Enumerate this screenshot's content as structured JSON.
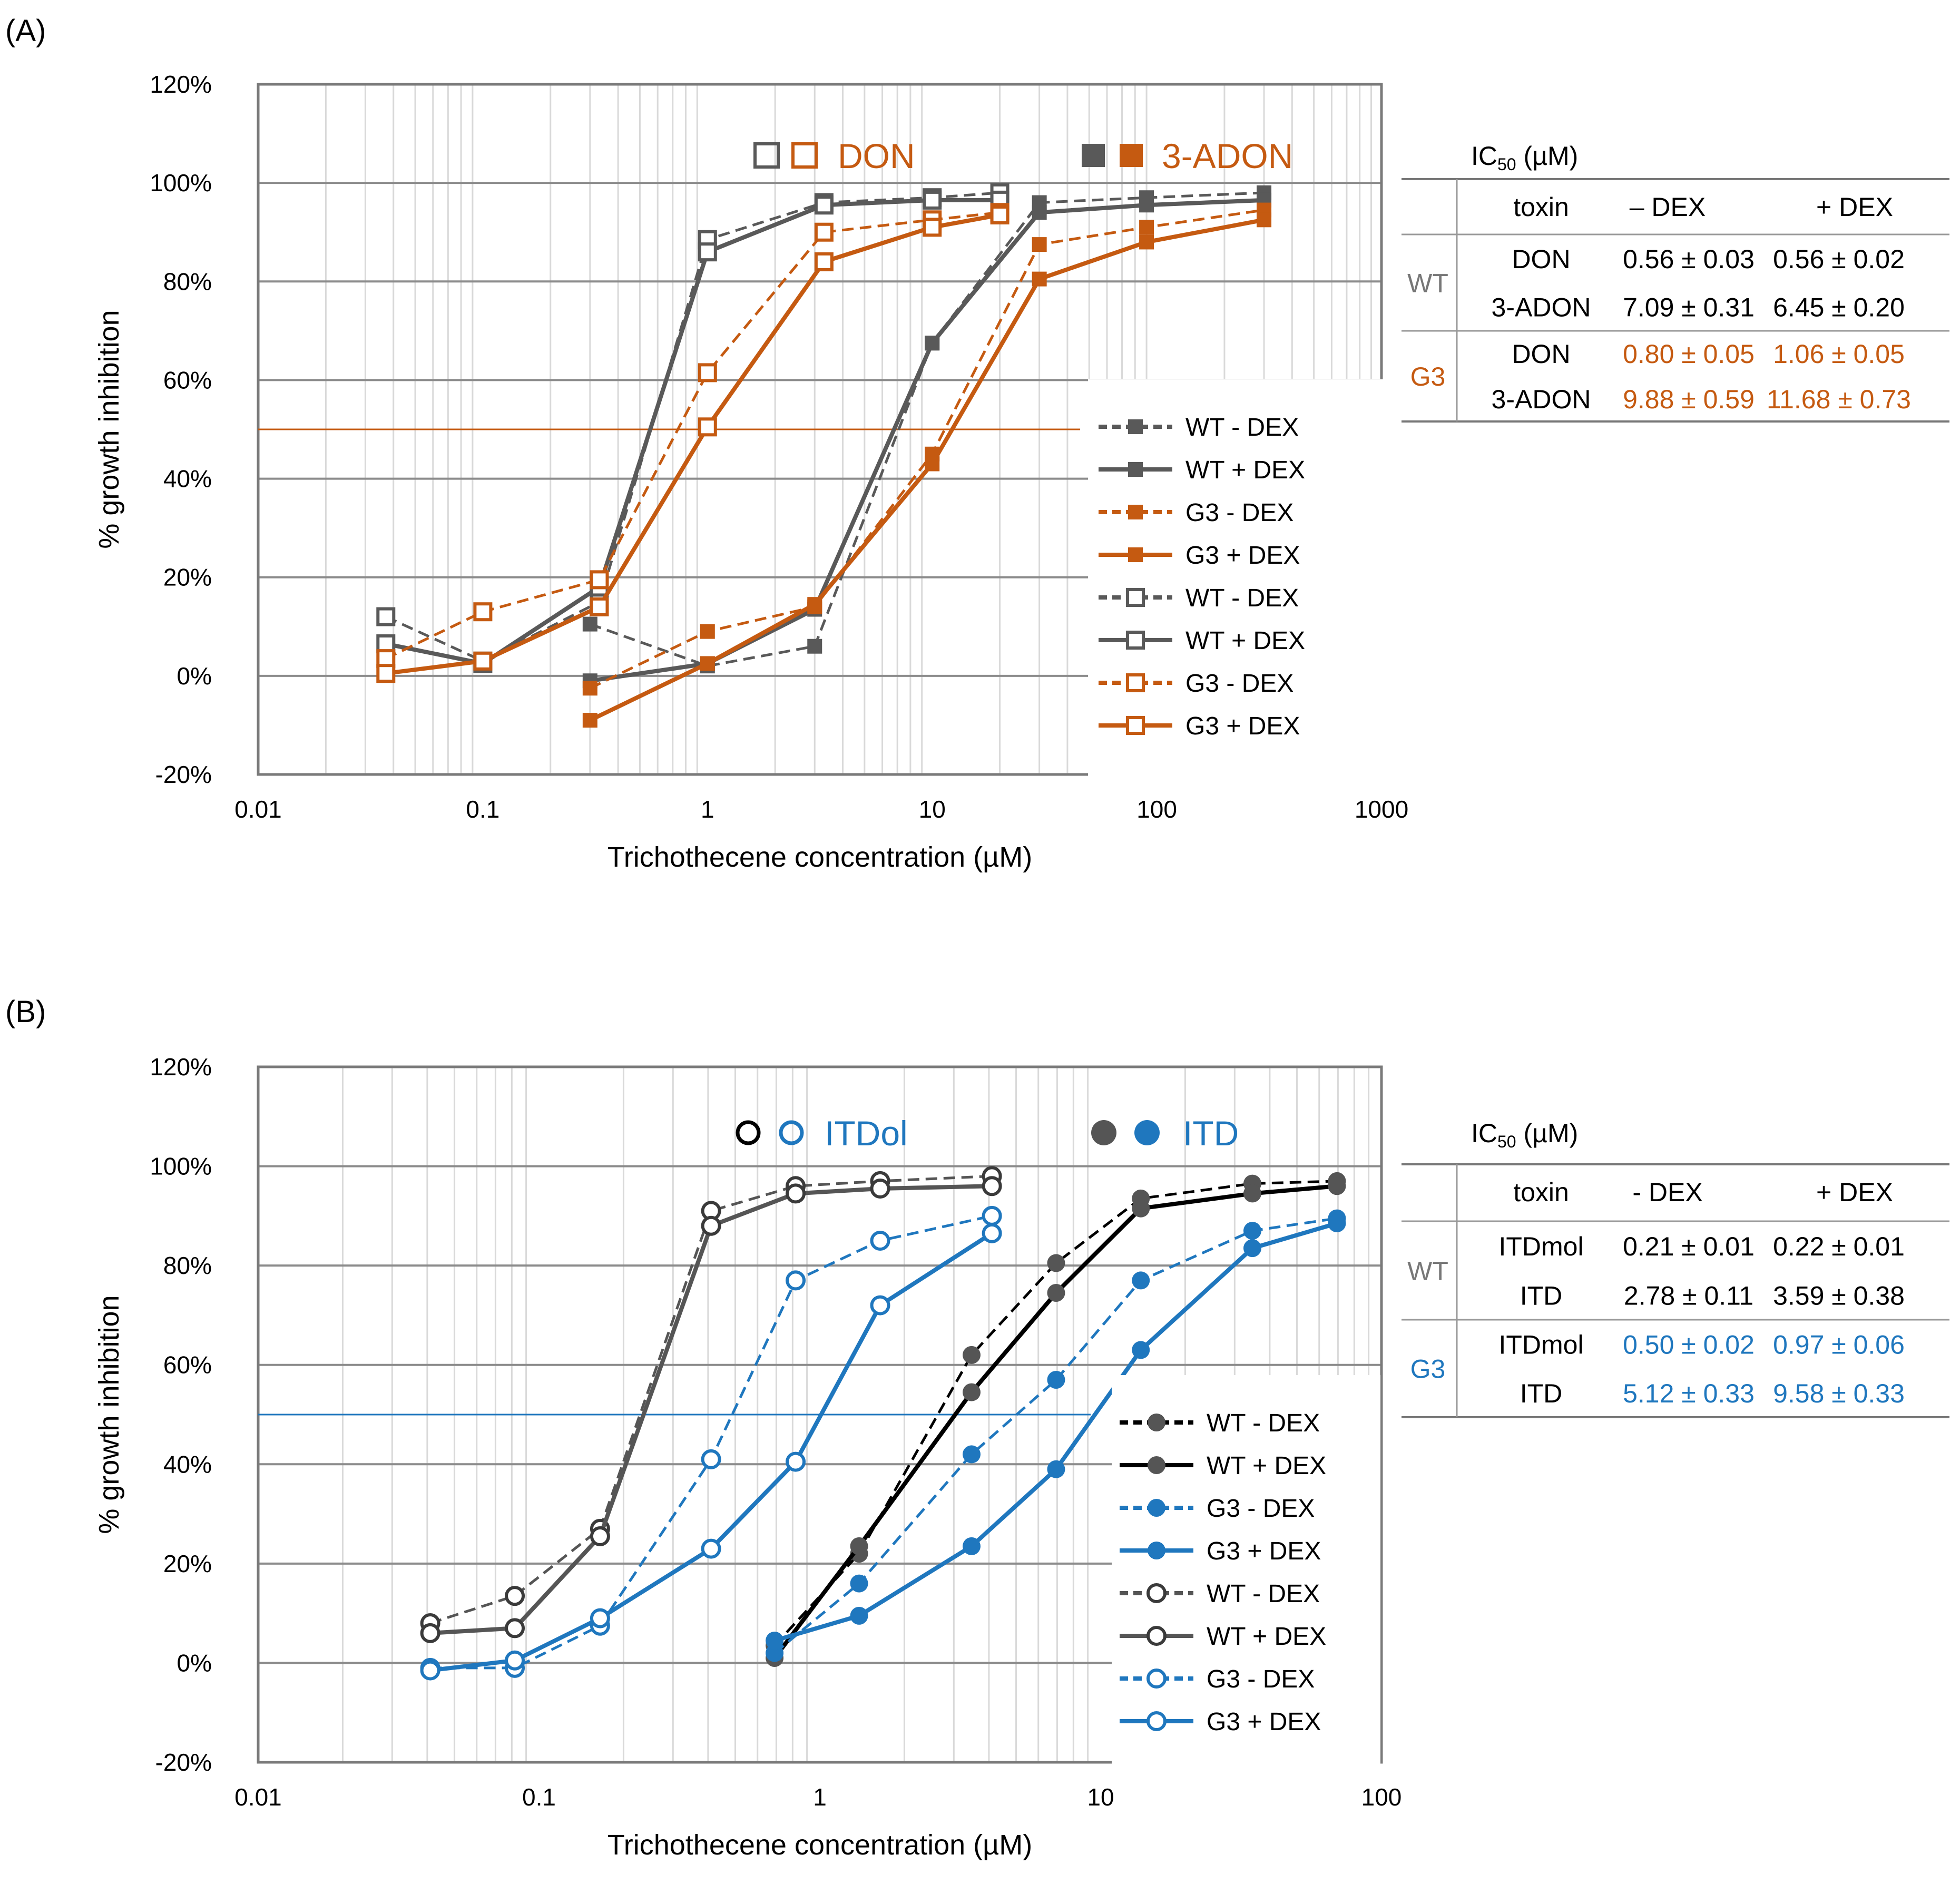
{
  "colors": {
    "wt_a": "#595959",
    "wt_b": "#000000",
    "g3_a": "#C55A11",
    "g3_b": "#1F77BE",
    "grid_major": "#8c8c8c",
    "grid_minor": "#d9d9d9"
  },
  "panels": [
    {
      "label": "(A)",
      "xlabel": "Trichothecene concentration (µM)",
      "ylabel": "% growth inhibition",
      "legend_titles": [
        "DON",
        "3-ADON"
      ],
      "legend_labels": [
        "WT - DEX",
        "WT + DEX",
        "G3 - DEX",
        "G3 + DEX",
        "WT - DEX",
        "WT + DEX",
        "G3 - DEX",
        "G3 + DEX"
      ],
      "table": {
        "title": "IC50 (µM)",
        "headers": [
          "toxin",
          "– DEX",
          "+ DEX"
        ],
        "groups": [
          {
            "strain": "WT",
            "rows": [
              [
                "DON",
                "0.56 ± 0.03",
                "0.56 ± 0.02"
              ],
              [
                "3-ADON",
                "7.09 ± 0.31",
                "6.45 ± 0.20"
              ]
            ]
          },
          {
            "strain": "G3",
            "rows": [
              [
                "DON",
                "0.80 ± 0.05",
                "1.06 ± 0.05"
              ],
              [
                "3-ADON",
                "9.88 ± 0.59",
                "11.68 ± 0.73"
              ]
            ]
          }
        ]
      }
    },
    {
      "label": "(B)",
      "xlabel": "Trichothecene concentration (µM)",
      "ylabel": "% growth inhibition",
      "legend_titles": [
        "ITDol",
        "ITD"
      ],
      "legend_labels": [
        "WT - DEX",
        "WT + DEX",
        "G3 - DEX",
        "G3 + DEX",
        "WT - DEX",
        "WT + DEX",
        "G3 - DEX",
        "G3 + DEX"
      ],
      "table": {
        "title": "IC50 (µM)",
        "headers": [
          "toxin",
          "- DEX",
          "+ DEX"
        ],
        "groups": [
          {
            "strain": "WT",
            "rows": [
              [
                "ITDmol",
                "0.21 ± 0.01",
                "0.22 ± 0.01"
              ],
              [
                "ITD",
                "2.78 ± 0.11",
                "3.59 ± 0.38"
              ]
            ]
          },
          {
            "strain": "G3",
            "rows": [
              [
                "ITDmol",
                "0.50 ± 0.02",
                "0.97 ± 0.06"
              ],
              [
                "ITD",
                "5.12 ± 0.33",
                "9.58 ± 0.33"
              ]
            ]
          }
        ]
      }
    }
  ],
  "chart_data": [
    {
      "type": "line",
      "xscale": "log",
      "xlim": [
        0.01,
        1000
      ],
      "ylim": [
        -20,
        120
      ],
      "x_ticks": [
        "0.01",
        "0.1",
        "1",
        "10",
        "100",
        "1000"
      ],
      "y_ticks": [
        "-20%",
        "0%",
        "20%",
        "40%",
        "60%",
        "80%",
        "100%",
        "120%"
      ],
      "reference_line_y": 50,
      "grid": true,
      "legend_position": "center-right",
      "series": [
        {
          "name": "WT - DEX",
          "toxin": "3-ADON",
          "strain": "WT",
          "dex": "-",
          "marker": "filled-square",
          "dashed": true,
          "x": [
            0.3,
            1,
            3,
            10,
            30,
            90,
            300
          ],
          "y": [
            10.5,
            2,
            6,
            67.5,
            96,
            97,
            98
          ]
        },
        {
          "name": "WT + DEX",
          "toxin": "3-ADON",
          "strain": "WT",
          "dex": "+",
          "marker": "filled-square",
          "dashed": false,
          "x": [
            0.3,
            1,
            3,
            10,
            30,
            90,
            300
          ],
          "y": [
            -1,
            2.5,
            13.5,
            67.5,
            94,
            95.5,
            96.5
          ]
        },
        {
          "name": "G3 - DEX",
          "toxin": "3-ADON",
          "strain": "G3",
          "dex": "-",
          "marker": "filled-square",
          "dashed": true,
          "x": [
            0.3,
            1,
            3,
            10,
            30,
            90,
            300
          ],
          "y": [
            -2.5,
            9,
            14,
            45,
            87.5,
            91,
            94.5
          ]
        },
        {
          "name": "G3 + DEX",
          "toxin": "3-ADON",
          "strain": "G3",
          "dex": "+",
          "marker": "filled-square",
          "dashed": false,
          "x": [
            0.3,
            1,
            3,
            10,
            30,
            90,
            300
          ],
          "y": [
            -9,
            2.5,
            14.5,
            43,
            80.5,
            88,
            92.5
          ]
        },
        {
          "name": "WT - DEX",
          "toxin": "DON",
          "strain": "WT",
          "dex": "-",
          "marker": "open-square",
          "dashed": true,
          "x": [
            0.037,
            0.1,
            0.33,
            1,
            3.3,
            10,
            20
          ],
          "y": [
            12,
            3,
            15,
            88.5,
            96,
            97,
            98
          ]
        },
        {
          "name": "WT + DEX",
          "toxin": "DON",
          "strain": "WT",
          "dex": "+",
          "marker": "open-square",
          "dashed": false,
          "x": [
            0.037,
            0.1,
            0.33,
            1,
            3.3,
            10,
            20
          ],
          "y": [
            6.5,
            2.5,
            18,
            86,
            95.5,
            96.5,
            96.5
          ]
        },
        {
          "name": "G3 - DEX",
          "toxin": "DON",
          "strain": "G3",
          "dex": "-",
          "marker": "open-square",
          "dashed": true,
          "x": [
            0.037,
            0.1,
            0.33,
            1,
            3.3,
            10,
            20
          ],
          "y": [
            3.5,
            13,
            19.5,
            61.5,
            90,
            92.5,
            94
          ]
        },
        {
          "name": "G3 + DEX",
          "toxin": "DON",
          "strain": "G3",
          "dex": "+",
          "marker": "open-square",
          "dashed": false,
          "x": [
            0.037,
            0.1,
            0.33,
            1,
            3.3,
            10,
            20
          ],
          "y": [
            0.5,
            3,
            14,
            50.5,
            84,
            91,
            93.5
          ]
        }
      ]
    },
    {
      "type": "line",
      "xscale": "log",
      "xlim": [
        0.01,
        100
      ],
      "ylim": [
        -20,
        120
      ],
      "x_ticks": [
        "0.01",
        "0.1",
        "1",
        "10",
        "100"
      ],
      "y_ticks": [
        "-20%",
        "0%",
        "20%",
        "40%",
        "60%",
        "80%",
        "100%",
        "120%"
      ],
      "reference_line_y": 50,
      "grid": true,
      "legend_position": "bottom-right",
      "series": [
        {
          "name": "WT - DEX",
          "toxin": "ITD",
          "strain": "WT",
          "dex": "-",
          "marker": "filled-circle",
          "dashed": true,
          "x": [
            0.69,
            1.38,
            3.47,
            6.94,
            13.9,
            34.7,
            69.4
          ],
          "y": [
            3.5,
            22,
            62,
            80.5,
            93.5,
            96.5,
            97
          ]
        },
        {
          "name": "WT + DEX",
          "toxin": "ITD",
          "strain": "WT",
          "dex": "+",
          "marker": "filled-circle",
          "dashed": false,
          "x": [
            0.69,
            1.38,
            3.47,
            6.94,
            13.9,
            34.7,
            69.4
          ],
          "y": [
            1,
            23.5,
            54.5,
            74.5,
            91.5,
            94.5,
            96
          ]
        },
        {
          "name": "G3 - DEX",
          "toxin": "ITD",
          "strain": "G3",
          "dex": "-",
          "marker": "filled-circle",
          "dashed": true,
          "x": [
            0.69,
            1.38,
            3.47,
            6.94,
            13.9,
            34.7,
            69.4
          ],
          "y": [
            2,
            16,
            42,
            57,
            77,
            87,
            89.5
          ]
        },
        {
          "name": "G3 + DEX",
          "toxin": "ITD",
          "strain": "G3",
          "dex": "+",
          "marker": "filled-circle",
          "dashed": false,
          "x": [
            0.69,
            1.38,
            3.47,
            6.94,
            13.9,
            34.7,
            69.4
          ],
          "y": [
            4.5,
            9.5,
            23.5,
            39,
            63,
            83.5,
            88.5
          ]
        },
        {
          "name": "WT - DEX",
          "toxin": "ITDol",
          "strain": "WT",
          "dex": "-",
          "marker": "open-circle",
          "dashed": true,
          "x": [
            0.041,
            0.082,
            0.165,
            0.41,
            0.82,
            1.64,
            4.1
          ],
          "y": [
            8,
            13.5,
            27,
            91,
            96,
            97,
            98
          ]
        },
        {
          "name": "WT + DEX",
          "toxin": "ITDol",
          "strain": "WT",
          "dex": "+",
          "marker": "open-circle",
          "dashed": false,
          "x": [
            0.041,
            0.082,
            0.165,
            0.41,
            0.82,
            1.64,
            4.1
          ],
          "y": [
            6,
            7,
            25.5,
            88,
            94.5,
            95.5,
            96
          ]
        },
        {
          "name": "G3 - DEX",
          "toxin": "ITDol",
          "strain": "G3",
          "dex": "-",
          "marker": "open-circle",
          "dashed": true,
          "x": [
            0.041,
            0.082,
            0.165,
            0.41,
            0.82,
            1.64,
            4.1
          ],
          "y": [
            -1,
            -1,
            7.5,
            41,
            77,
            85,
            90
          ]
        },
        {
          "name": "G3 + DEX",
          "toxin": "ITDol",
          "strain": "G3",
          "dex": "+",
          "marker": "open-circle",
          "dashed": false,
          "x": [
            0.041,
            0.082,
            0.165,
            0.41,
            0.82,
            1.64,
            4.1
          ],
          "y": [
            -1.5,
            0.5,
            9,
            23,
            40.5,
            72,
            86.5
          ]
        }
      ]
    }
  ]
}
